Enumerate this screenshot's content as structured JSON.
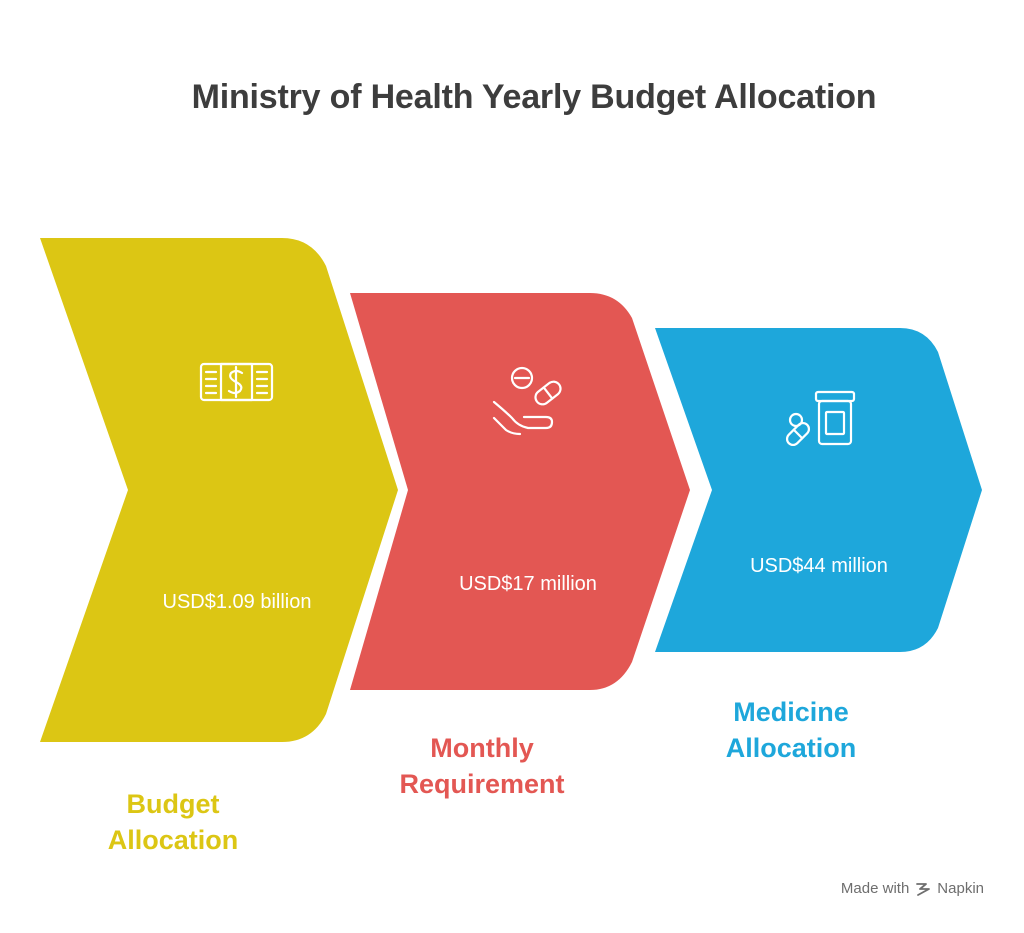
{
  "title": "Ministry of Health Yearly Budget Allocation",
  "colors": {
    "budget": "#dcc614",
    "monthly": "#e35753",
    "medicine": "#1ea7db",
    "title": "#3d3d3d"
  },
  "steps": [
    {
      "icon": "money-bills-icon",
      "value": "USD$1.09 billion",
      "label_line1": "Budget",
      "label_line2": "Allocation"
    },
    {
      "icon": "pills-in-hand-icon",
      "value": "USD$17 million",
      "label_line1": "Monthly",
      "label_line2": "Requirement"
    },
    {
      "icon": "medicine-jar-icon",
      "value": "USD$44 million",
      "label_line1": "Medicine",
      "label_line2": "Allocation"
    }
  ],
  "footer": {
    "made_with": "Made with",
    "brand": "Napkin"
  }
}
